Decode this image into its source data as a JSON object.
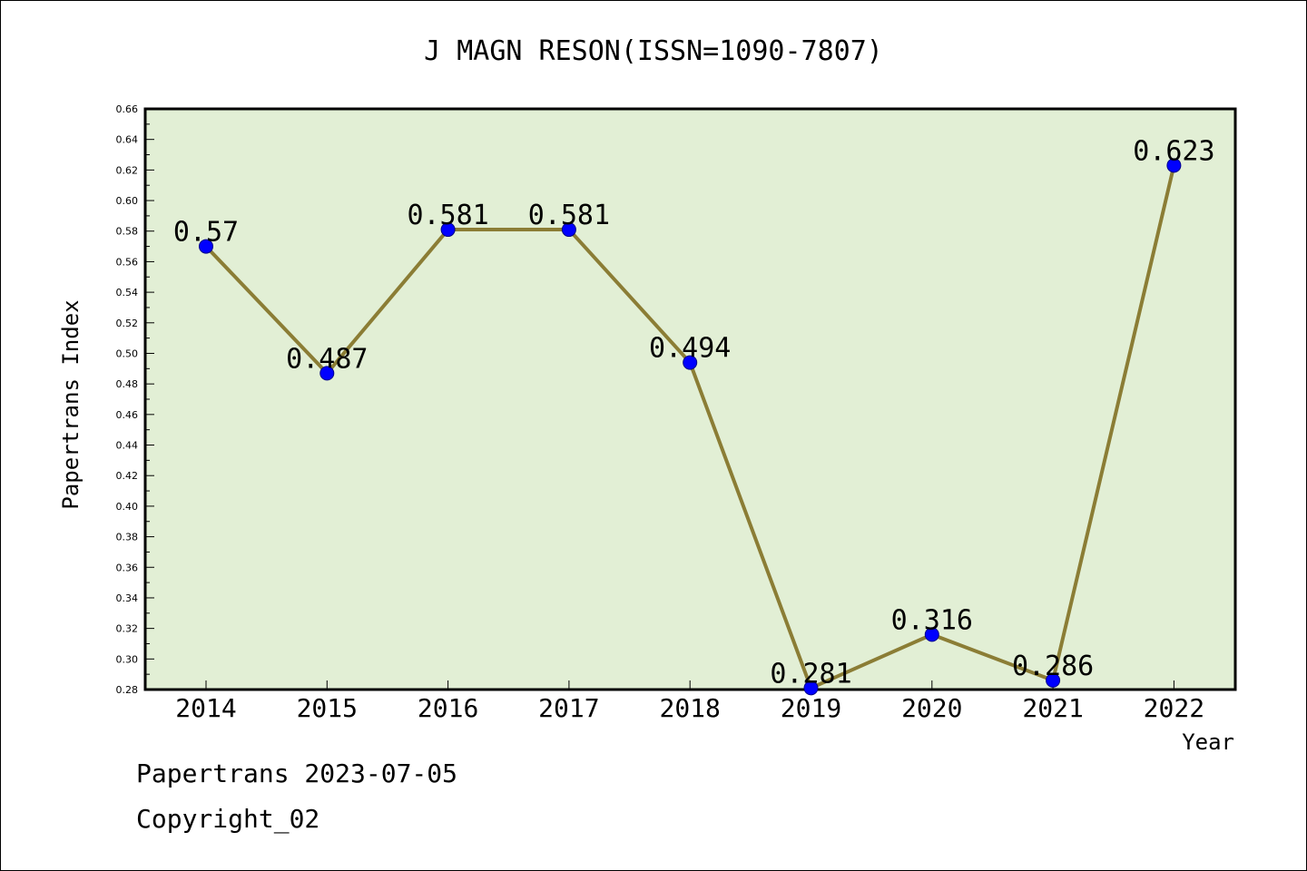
{
  "chart_data": {
    "type": "line",
    "title": "J MAGN RESON(ISSN=1090-7807)",
    "xlabel": "Year",
    "ylabel": "Papertrans Index",
    "categories": [
      "2014",
      "2015",
      "2016",
      "2017",
      "2018",
      "2019",
      "2020",
      "2021",
      "2022"
    ],
    "values": [
      0.57,
      0.487,
      0.581,
      0.581,
      0.494,
      0.281,
      0.316,
      0.286,
      0.623
    ],
    "data_labels": [
      "0.57",
      "0.487",
      "0.581",
      "0.581",
      "0.494",
      "0.281",
      "0.316",
      "0.286",
      "0.623"
    ],
    "ylim": [
      0.28,
      0.66
    ],
    "yticks": [
      "0.28",
      "0.30",
      "0.32",
      "0.34",
      "0.36",
      "0.38",
      "0.40",
      "0.42",
      "0.44",
      "0.46",
      "0.48",
      "0.50",
      "0.52",
      "0.54",
      "0.56",
      "0.58",
      "0.60",
      "0.62",
      "0.64",
      "0.66"
    ],
    "grid": false,
    "colors": {
      "plot_background": "#e2efd5",
      "line": "#8b7d35",
      "marker": "#0000ff",
      "marker_edge": "#00008b",
      "axes": "#000000"
    }
  },
  "footer": {
    "line1": "Papertrans 2023-07-05",
    "line2": "Copyright_02"
  }
}
